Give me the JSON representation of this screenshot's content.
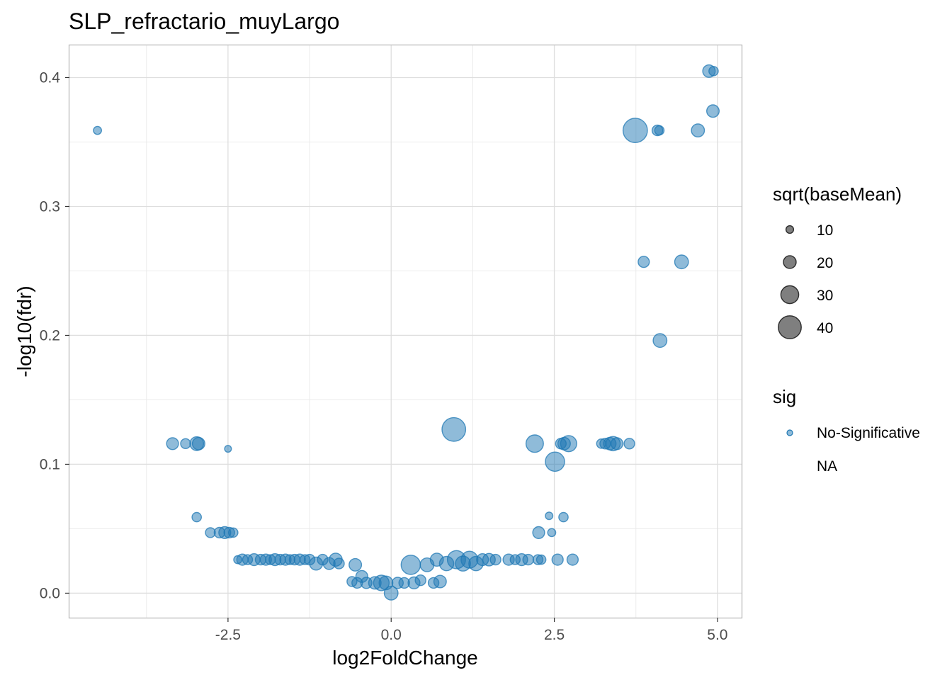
{
  "chart_data": {
    "type": "scatter",
    "title": "SLP_refractario_muyLargo",
    "xlabel": "log2FoldChange",
    "ylabel": "-log10(fdr)",
    "xlim": [
      -4.93,
      5.37
    ],
    "ylim": [
      -0.019,
      0.425
    ],
    "x_ticks": [
      -2.5,
      0.0,
      2.5,
      5.0
    ],
    "x_tick_labels": [
      "-2.5",
      "0.0",
      "2.5",
      "5.0"
    ],
    "y_ticks": [
      0.0,
      0.1,
      0.2,
      0.3,
      0.4
    ],
    "y_tick_labels": [
      "0.0",
      "0.1",
      "0.2",
      "0.3",
      "0.4"
    ],
    "grid": true,
    "point_color": "#1f78b4",
    "point_alpha": 0.5,
    "legend_position": "right",
    "size_legend": {
      "title": "sqrt(baseMean)",
      "entries": [
        {
          "label": "10",
          "value": 10
        },
        {
          "label": "20",
          "value": 20
        },
        {
          "label": "30",
          "value": 30
        },
        {
          "label": "40",
          "value": 40
        }
      ]
    },
    "color_legend": {
      "title": "sig",
      "entries": [
        "No-Significative",
        "NA"
      ]
    },
    "points": [
      {
        "x": -4.5,
        "y": 0.359,
        "s": 8
      },
      {
        "x": 4.87,
        "y": 0.405,
        "s": 15
      },
      {
        "x": 4.94,
        "y": 0.405,
        "s": 10
      },
      {
        "x": 4.93,
        "y": 0.374,
        "s": 15
      },
      {
        "x": 3.74,
        "y": 0.359,
        "s": 34
      },
      {
        "x": 4.08,
        "y": 0.359,
        "s": 12
      },
      {
        "x": 4.11,
        "y": 0.359,
        "s": 10
      },
      {
        "x": 4.7,
        "y": 0.359,
        "s": 16
      },
      {
        "x": 3.87,
        "y": 0.257,
        "s": 13
      },
      {
        "x": 4.45,
        "y": 0.257,
        "s": 17
      },
      {
        "x": 4.12,
        "y": 0.196,
        "s": 17
      },
      {
        "x": -3.35,
        "y": 0.116,
        "s": 14
      },
      {
        "x": -3.15,
        "y": 0.116,
        "s": 11
      },
      {
        "x": -2.98,
        "y": 0.116,
        "s": 17
      },
      {
        "x": -2.95,
        "y": 0.116,
        "s": 15
      },
      {
        "x": -2.5,
        "y": 0.112,
        "s": 6
      },
      {
        "x": 0.96,
        "y": 0.127,
        "s": 33
      },
      {
        "x": 2.2,
        "y": 0.116,
        "s": 23
      },
      {
        "x": 2.6,
        "y": 0.116,
        "s": 12
      },
      {
        "x": 2.65,
        "y": 0.116,
        "s": 15
      },
      {
        "x": 2.72,
        "y": 0.116,
        "s": 21
      },
      {
        "x": 2.51,
        "y": 0.102,
        "s": 26
      },
      {
        "x": 3.22,
        "y": 0.116,
        "s": 10
      },
      {
        "x": 3.28,
        "y": 0.116,
        "s": 12
      },
      {
        "x": 3.35,
        "y": 0.116,
        "s": 15
      },
      {
        "x": 3.4,
        "y": 0.116,
        "s": 18
      },
      {
        "x": 3.46,
        "y": 0.116,
        "s": 14
      },
      {
        "x": 3.65,
        "y": 0.116,
        "s": 12
      },
      {
        "x": -2.98,
        "y": 0.059,
        "s": 10
      },
      {
        "x": -2.77,
        "y": 0.047,
        "s": 11
      },
      {
        "x": -2.63,
        "y": 0.047,
        "s": 12
      },
      {
        "x": -2.55,
        "y": 0.047,
        "s": 14
      },
      {
        "x": -2.48,
        "y": 0.047,
        "s": 12
      },
      {
        "x": -2.42,
        "y": 0.047,
        "s": 10
      },
      {
        "x": 2.42,
        "y": 0.06,
        "s": 7
      },
      {
        "x": 2.64,
        "y": 0.059,
        "s": 10
      },
      {
        "x": 2.26,
        "y": 0.047,
        "s": 14
      },
      {
        "x": 2.46,
        "y": 0.047,
        "s": 8
      },
      {
        "x": -2.35,
        "y": 0.026,
        "s": 8
      },
      {
        "x": -2.28,
        "y": 0.026,
        "s": 13
      },
      {
        "x": -2.2,
        "y": 0.026,
        "s": 11
      },
      {
        "x": -2.1,
        "y": 0.026,
        "s": 14
      },
      {
        "x": -2.0,
        "y": 0.026,
        "s": 12
      },
      {
        "x": -1.92,
        "y": 0.026,
        "s": 13
      },
      {
        "x": -1.85,
        "y": 0.026,
        "s": 11
      },
      {
        "x": -1.78,
        "y": 0.026,
        "s": 14
      },
      {
        "x": -1.7,
        "y": 0.026,
        "s": 12
      },
      {
        "x": -1.62,
        "y": 0.026,
        "s": 13
      },
      {
        "x": -1.55,
        "y": 0.026,
        "s": 11
      },
      {
        "x": -1.48,
        "y": 0.026,
        "s": 12
      },
      {
        "x": -1.4,
        "y": 0.026,
        "s": 13
      },
      {
        "x": -1.32,
        "y": 0.026,
        "s": 11
      },
      {
        "x": -1.25,
        "y": 0.026,
        "s": 12
      },
      {
        "x": -1.15,
        "y": 0.023,
        "s": 16
      },
      {
        "x": -1.05,
        "y": 0.026,
        "s": 12
      },
      {
        "x": -0.95,
        "y": 0.023,
        "s": 14
      },
      {
        "x": -0.85,
        "y": 0.026,
        "s": 16
      },
      {
        "x": -0.8,
        "y": 0.023,
        "s": 12
      },
      {
        "x": -0.55,
        "y": 0.022,
        "s": 15
      },
      {
        "x": -0.6,
        "y": 0.009,
        "s": 11
      },
      {
        "x": -0.45,
        "y": 0.013,
        "s": 14
      },
      {
        "x": -0.52,
        "y": 0.008,
        "s": 12
      },
      {
        "x": -0.38,
        "y": 0.008,
        "s": 13
      },
      {
        "x": -0.25,
        "y": 0.008,
        "s": 15
      },
      {
        "x": -0.15,
        "y": 0.008,
        "s": 20
      },
      {
        "x": -0.08,
        "y": 0.008,
        "s": 17
      },
      {
        "x": 0.0,
        "y": 0.0,
        "s": 17
      },
      {
        "x": 0.1,
        "y": 0.008,
        "s": 13
      },
      {
        "x": 0.2,
        "y": 0.008,
        "s": 12
      },
      {
        "x": 0.3,
        "y": 0.022,
        "s": 26
      },
      {
        "x": 0.35,
        "y": 0.008,
        "s": 14
      },
      {
        "x": 0.45,
        "y": 0.01,
        "s": 12
      },
      {
        "x": 0.55,
        "y": 0.022,
        "s": 17
      },
      {
        "x": 0.65,
        "y": 0.008,
        "s": 12
      },
      {
        "x": 0.75,
        "y": 0.009,
        "s": 15
      },
      {
        "x": 0.7,
        "y": 0.026,
        "s": 16
      },
      {
        "x": 0.85,
        "y": 0.023,
        "s": 18
      },
      {
        "x": 1.0,
        "y": 0.026,
        "s": 24
      },
      {
        "x": 1.1,
        "y": 0.023,
        "s": 19
      },
      {
        "x": 1.2,
        "y": 0.026,
        "s": 22
      },
      {
        "x": 1.3,
        "y": 0.023,
        "s": 18
      },
      {
        "x": 1.4,
        "y": 0.026,
        "s": 14
      },
      {
        "x": 1.5,
        "y": 0.026,
        "s": 15
      },
      {
        "x": 1.6,
        "y": 0.026,
        "s": 12
      },
      {
        "x": 1.8,
        "y": 0.026,
        "s": 13
      },
      {
        "x": 1.9,
        "y": 0.026,
        "s": 11
      },
      {
        "x": 2.0,
        "y": 0.026,
        "s": 14
      },
      {
        "x": 2.1,
        "y": 0.026,
        "s": 12
      },
      {
        "x": 2.25,
        "y": 0.026,
        "s": 11
      },
      {
        "x": 2.3,
        "y": 0.026,
        "s": 10
      },
      {
        "x": 2.55,
        "y": 0.026,
        "s": 13
      },
      {
        "x": 2.78,
        "y": 0.026,
        "s": 13
      }
    ]
  }
}
